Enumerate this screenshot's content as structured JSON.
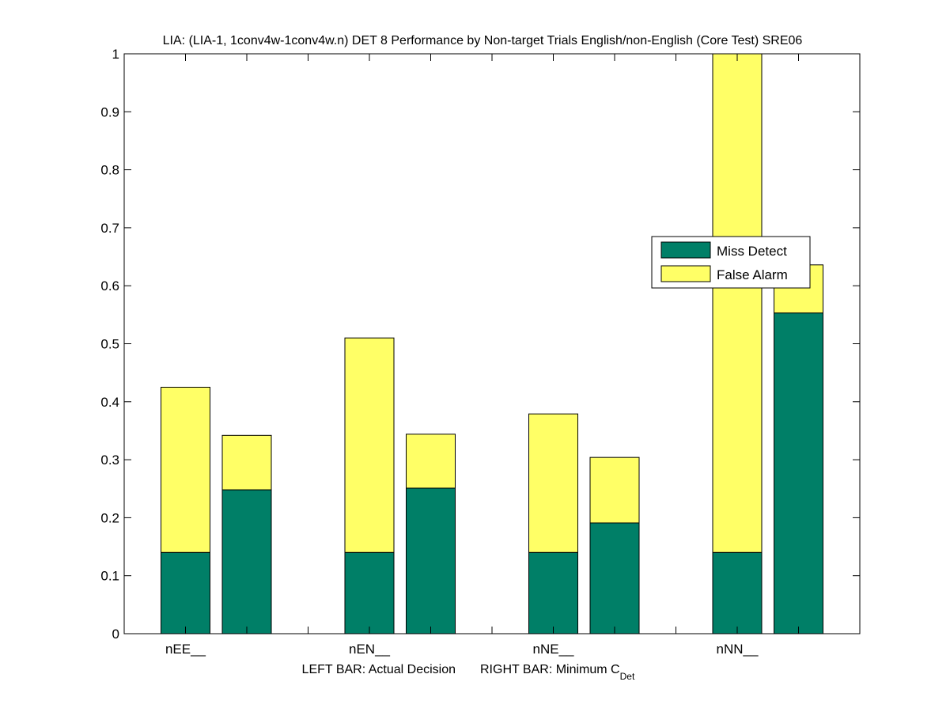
{
  "chart_data": {
    "type": "bar",
    "stacked": true,
    "title": "LIA: (LIA-1, 1conv4w-1conv4w.n) DET 8 Performance by Non-target Trials English/non-English (Core Test) SRE06",
    "xlabel_left": "LEFT BAR: Actual Decision",
    "xlabel_right_main": "RIGHT BAR: Minimum C",
    "xlabel_right_sub": "Det",
    "ylabel": "",
    "ylim": [
      0,
      1
    ],
    "xlim": [
      0,
      12
    ],
    "yticks": [
      "0",
      "0.1",
      "0.2",
      "0.3",
      "0.4",
      "0.5",
      "0.6",
      "0.7",
      "0.8",
      "0.9",
      "1"
    ],
    "xtick_positions": [
      1,
      2,
      3,
      4,
      5,
      6,
      7,
      8,
      9,
      10,
      11
    ],
    "categories": [
      "nEE__",
      "nEN__",
      "nNE__",
      "nNN__"
    ],
    "category_positions": [
      1,
      4,
      7,
      10
    ],
    "bars": [
      {
        "category": "nEE__",
        "which": "left",
        "x": 1,
        "miss": 0.14,
        "total": 0.425
      },
      {
        "category": "nEE__",
        "which": "right",
        "x": 2,
        "miss": 0.248,
        "total": 0.342
      },
      {
        "category": "nEN__",
        "which": "left",
        "x": 4,
        "miss": 0.14,
        "total": 0.51
      },
      {
        "category": "nEN__",
        "which": "right",
        "x": 5,
        "miss": 0.251,
        "total": 0.344
      },
      {
        "category": "nNE__",
        "which": "left",
        "x": 7,
        "miss": 0.14,
        "total": 0.379
      },
      {
        "category": "nNE__",
        "which": "right",
        "x": 8,
        "miss": 0.191,
        "total": 0.304
      },
      {
        "category": "nNN__",
        "which": "left",
        "x": 10,
        "miss": 0.14,
        "total": 1.0
      },
      {
        "category": "nNN__",
        "which": "right",
        "x": 11,
        "miss": 0.553,
        "total": 0.636
      }
    ],
    "series": [
      {
        "name": "Miss Detect",
        "color": "#007f67",
        "values": [
          0.14,
          0.248,
          0.14,
          0.251,
          0.14,
          0.191,
          0.14,
          0.553
        ]
      },
      {
        "name": "False Alarm",
        "color": "#ffff66",
        "values": [
          0.285,
          0.094,
          0.37,
          0.093,
          0.239,
          0.113,
          0.86,
          0.083
        ]
      }
    ],
    "legend": {
      "placement": "right-middle",
      "entries": [
        "Miss Detect",
        "False Alarm"
      ]
    },
    "grid": false
  }
}
